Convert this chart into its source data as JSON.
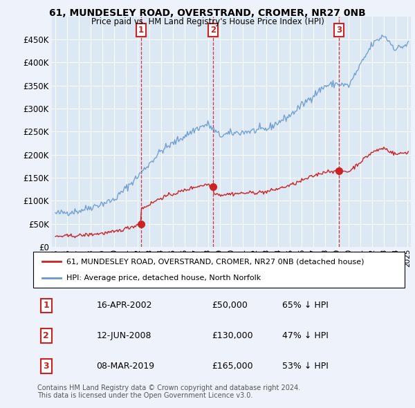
{
  "title": "61, MUNDESLEY ROAD, OVERSTRAND, CROMER, NR27 0NB",
  "subtitle": "Price paid vs. HM Land Registry's House Price Index (HPI)",
  "background_color": "#eef2fb",
  "plot_bg_color": "#dde8f5",
  "hpi_color": "#6699cc",
  "price_color": "#cc2222",
  "annotation_color": "#cc2222",
  "sales": [
    {
      "date_num": 2002.29,
      "price": 50000,
      "label": "1"
    },
    {
      "date_num": 2008.45,
      "price": 130000,
      "label": "2"
    },
    {
      "date_num": 2019.19,
      "price": 165000,
      "label": "3"
    }
  ],
  "table_rows": [
    {
      "num": "1",
      "date": "16-APR-2002",
      "price": "£50,000",
      "pct": "65% ↓ HPI"
    },
    {
      "num": "2",
      "date": "12-JUN-2008",
      "price": "£130,000",
      "pct": "47% ↓ HPI"
    },
    {
      "num": "3",
      "date": "08-MAR-2019",
      "price": "£165,000",
      "pct": "53% ↓ HPI"
    }
  ],
  "legend_entries": [
    "61, MUNDESLEY ROAD, OVERSTRAND, CROMER, NR27 0NB (detached house)",
    "HPI: Average price, detached house, North Norfolk"
  ],
  "footer": "Contains HM Land Registry data © Crown copyright and database right 2024.\nThis data is licensed under the Open Government Licence v3.0.",
  "ylim": [
    0,
    500000
  ],
  "yticks": [
    0,
    50000,
    100000,
    150000,
    200000,
    250000,
    300000,
    350000,
    400000,
    450000
  ],
  "xmin": 1994.7,
  "xmax": 2025.3
}
